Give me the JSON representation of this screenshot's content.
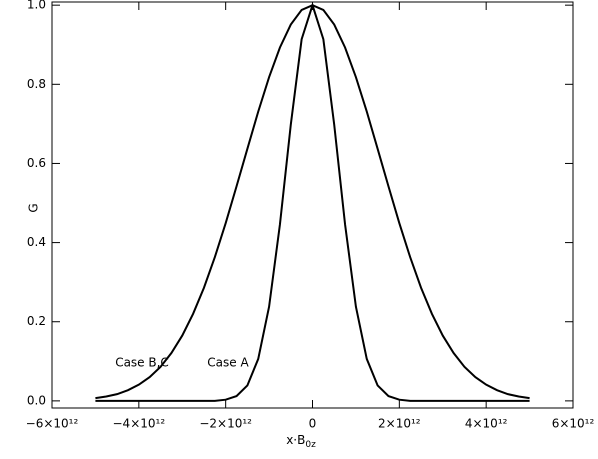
{
  "chart_data": {
    "type": "line",
    "xlabel": "x·B",
    "xlabel_subscript": "0z",
    "ylabel": "G",
    "x": [
      -5000000000000.0,
      -4750000000000.0,
      -4500000000000.0,
      -4250000000000.0,
      -4000000000000.0,
      -3750000000000.0,
      -3500000000000.0,
      -3250000000000.0,
      -3000000000000.0,
      -2750000000000.0,
      -2500000000000.0,
      -2250000000000.0,
      -2000000000000.0,
      -1750000000000.0,
      -1500000000000.0,
      -1250000000000.0,
      -1000000000000.0,
      -750000000000.0,
      -500000000000.0,
      -250000000000.0,
      0,
      250000000000.0,
      500000000000.0,
      750000000000.0,
      1000000000000.0,
      1250000000000.0,
      1500000000000.0,
      1750000000000.0,
      2000000000000.0,
      2250000000000.0,
      2500000000000.0,
      2750000000000.0,
      3000000000000.0,
      3250000000000.0,
      3500000000000.0,
      3750000000000.0,
      4000000000000.0,
      4250000000000.0,
      4500000000000.0,
      4750000000000.0,
      5000000000000.0
    ],
    "series": [
      {
        "color": "#000000",
        "values": [
          0.007,
          0.011,
          0.017,
          0.027,
          0.041,
          0.06,
          0.086,
          0.121,
          0.165,
          0.22,
          0.286,
          0.363,
          0.449,
          0.542,
          0.637,
          0.731,
          0.818,
          0.893,
          0.951,
          0.988,
          1,
          0.988,
          0.951,
          0.893,
          0.818,
          0.731,
          0.637,
          0.542,
          0.449,
          0.363,
          0.286,
          0.22,
          0.165,
          0.121,
          0.086,
          0.06,
          0.041,
          0.027,
          0.017,
          0.011,
          0.007
        ]
      },
      {
        "color": "#000000",
        "values": [
          0,
          0,
          0,
          0,
          0,
          0,
          0,
          0,
          0,
          0,
          0,
          0,
          0.003,
          0.012,
          0.039,
          0.106,
          0.238,
          0.446,
          0.698,
          0.914,
          1,
          0.914,
          0.698,
          0.446,
          0.238,
          0.106,
          0.039,
          0.012,
          0.003,
          0,
          0,
          0,
          0,
          0,
          0,
          0,
          0,
          0,
          0,
          0,
          0
        ]
      }
    ],
    "annotations": [
      "Case B,C",
      "Case A"
    ],
    "xlim": [
      -6000000000000.0,
      6000000000000.0
    ],
    "xticks": [
      {
        "value": -6000000000000.0,
        "label": "−6×10¹²"
      },
      {
        "value": -4000000000000.0,
        "label": "−4×10¹²"
      },
      {
        "value": -2000000000000.0,
        "label": "−2×10¹²"
      },
      0,
      {
        "value": 2000000000000.0,
        "label": "2×10¹²"
      },
      {
        "value": 4000000000000.0,
        "label": "4×10¹²"
      },
      {
        "value": 6000000000000.0,
        "label": "6×10¹²"
      }
    ],
    "ylim": [
      -0.018,
      1.008
    ],
    "yticks": [
      {
        "value": 0,
        "label": "0.0"
      },
      0.2,
      0.4,
      0.6,
      0.8,
      {
        "value": 1,
        "label": "1.0"
      }
    ]
  }
}
